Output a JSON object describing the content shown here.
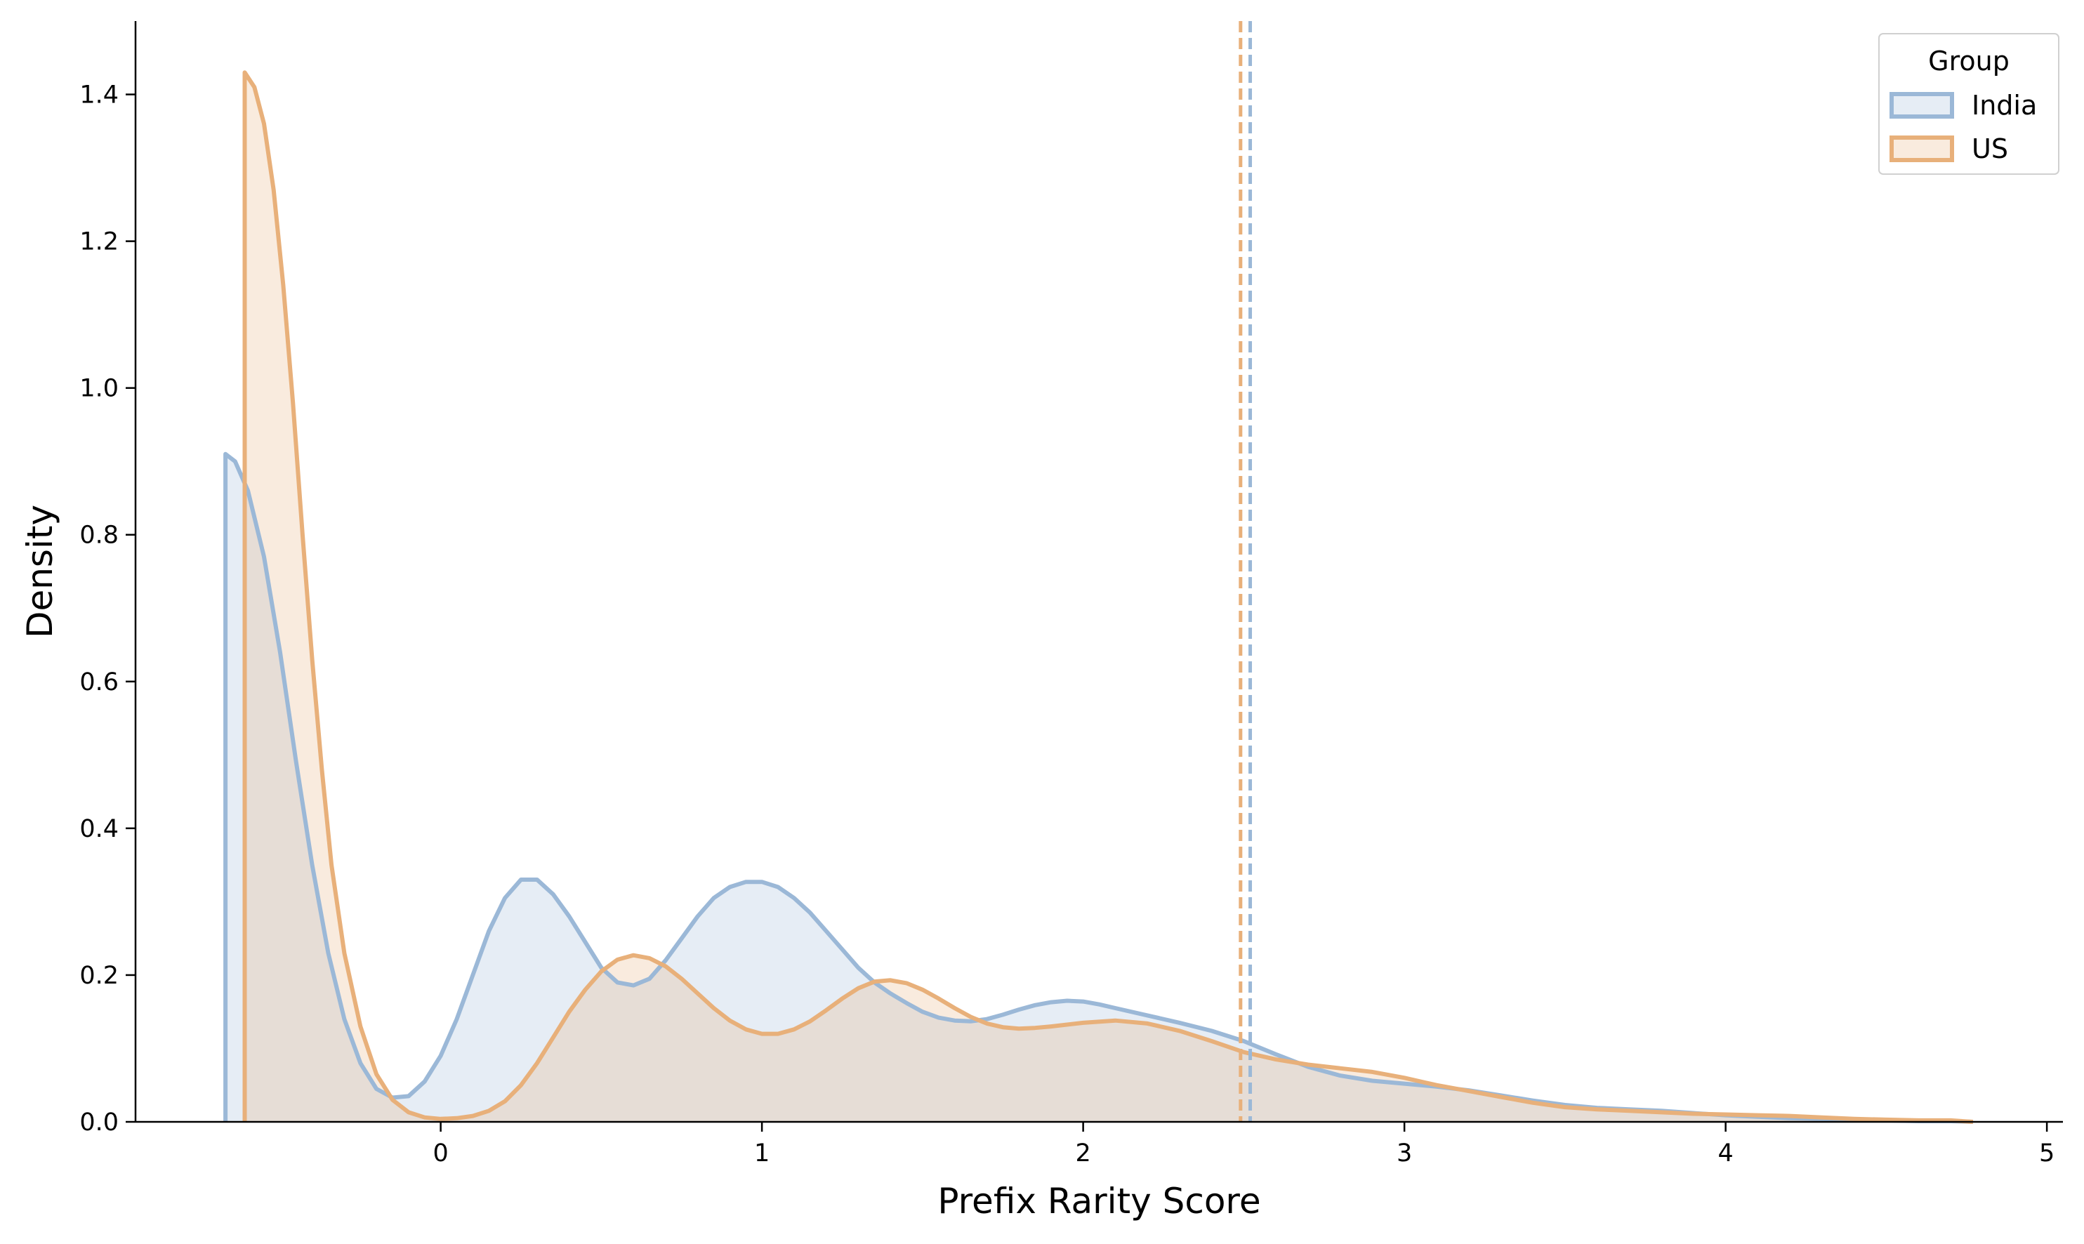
{
  "chart_data": {
    "type": "area",
    "subtype": "kde-density",
    "title": "",
    "xlabel": "Prefix Rarity Score",
    "ylabel": "Density",
    "xlim": [
      -0.95,
      5.05
    ],
    "ylim": [
      0.0,
      1.5
    ],
    "xticks": [
      0,
      1,
      2,
      3,
      4,
      5
    ],
    "xtick_labels": [
      "0",
      "1",
      "2",
      "3",
      "4",
      "5"
    ],
    "yticks": [
      0.0,
      0.2,
      0.4,
      0.6,
      0.8,
      1.0,
      1.2,
      1.4
    ],
    "ytick_labels": [
      "0.0",
      "0.2",
      "0.4",
      "0.6",
      "0.8",
      "1.0",
      "1.2",
      "1.4"
    ],
    "grid": false,
    "legend": {
      "title": "Group",
      "position": "top-right"
    },
    "series": [
      {
        "name": "India",
        "color": "#9bb8d7",
        "fill": "#e5edf6",
        "mean_line_x": 2.52,
        "points": [
          [
            -0.67,
            0.0
          ],
          [
            -0.67,
            0.91
          ],
          [
            -0.64,
            0.9
          ],
          [
            -0.6,
            0.86
          ],
          [
            -0.55,
            0.77
          ],
          [
            -0.5,
            0.64
          ],
          [
            -0.45,
            0.49
          ],
          [
            -0.4,
            0.35
          ],
          [
            -0.35,
            0.23
          ],
          [
            -0.3,
            0.14
          ],
          [
            -0.25,
            0.08
          ],
          [
            -0.2,
            0.045
          ],
          [
            -0.15,
            0.033
          ],
          [
            -0.1,
            0.035
          ],
          [
            -0.05,
            0.055
          ],
          [
            0.0,
            0.09
          ],
          [
            0.05,
            0.14
          ],
          [
            0.1,
            0.2
          ],
          [
            0.15,
            0.26
          ],
          [
            0.2,
            0.305
          ],
          [
            0.25,
            0.33
          ],
          [
            0.3,
            0.33
          ],
          [
            0.35,
            0.31
          ],
          [
            0.4,
            0.28
          ],
          [
            0.45,
            0.245
          ],
          [
            0.5,
            0.21
          ],
          [
            0.55,
            0.19
          ],
          [
            0.6,
            0.186
          ],
          [
            0.65,
            0.195
          ],
          [
            0.7,
            0.22
          ],
          [
            0.75,
            0.25
          ],
          [
            0.8,
            0.28
          ],
          [
            0.85,
            0.305
          ],
          [
            0.9,
            0.32
          ],
          [
            0.95,
            0.327
          ],
          [
            1.0,
            0.327
          ],
          [
            1.05,
            0.32
          ],
          [
            1.1,
            0.305
          ],
          [
            1.15,
            0.285
          ],
          [
            1.2,
            0.26
          ],
          [
            1.25,
            0.235
          ],
          [
            1.3,
            0.21
          ],
          [
            1.35,
            0.19
          ],
          [
            1.4,
            0.175
          ],
          [
            1.45,
            0.162
          ],
          [
            1.5,
            0.15
          ],
          [
            1.55,
            0.142
          ],
          [
            1.6,
            0.138
          ],
          [
            1.65,
            0.137
          ],
          [
            1.7,
            0.14
          ],
          [
            1.75,
            0.146
          ],
          [
            1.8,
            0.153
          ],
          [
            1.85,
            0.159
          ],
          [
            1.9,
            0.163
          ],
          [
            1.95,
            0.165
          ],
          [
            2.0,
            0.164
          ],
          [
            2.05,
            0.16
          ],
          [
            2.1,
            0.155
          ],
          [
            2.2,
            0.145
          ],
          [
            2.3,
            0.135
          ],
          [
            2.4,
            0.124
          ],
          [
            2.5,
            0.11
          ],
          [
            2.6,
            0.092
          ],
          [
            2.7,
            0.075
          ],
          [
            2.8,
            0.063
          ],
          [
            2.9,
            0.056
          ],
          [
            3.0,
            0.052
          ],
          [
            3.1,
            0.048
          ],
          [
            3.2,
            0.043
          ],
          [
            3.3,
            0.036
          ],
          [
            3.4,
            0.029
          ],
          [
            3.5,
            0.023
          ],
          [
            3.6,
            0.019
          ],
          [
            3.7,
            0.017
          ],
          [
            3.8,
            0.015
          ],
          [
            3.9,
            0.012
          ],
          [
            4.0,
            0.009
          ],
          [
            4.1,
            0.007
          ],
          [
            4.2,
            0.005
          ],
          [
            4.3,
            0.004
          ],
          [
            4.4,
            0.003
          ],
          [
            4.5,
            0.002
          ],
          [
            4.6,
            0.001
          ],
          [
            4.7,
            0.001
          ],
          [
            4.77,
            0.0
          ]
        ]
      },
      {
        "name": "US",
        "color": "#e8b07a",
        "fill": "#fae7d8",
        "mean_line_x": 2.49,
        "points": [
          [
            -0.61,
            0.0
          ],
          [
            -0.61,
            1.43
          ],
          [
            -0.58,
            1.41
          ],
          [
            -0.55,
            1.36
          ],
          [
            -0.52,
            1.27
          ],
          [
            -0.49,
            1.14
          ],
          [
            -0.46,
            0.98
          ],
          [
            -0.43,
            0.8
          ],
          [
            -0.4,
            0.63
          ],
          [
            -0.37,
            0.48
          ],
          [
            -0.34,
            0.35
          ],
          [
            -0.3,
            0.23
          ],
          [
            -0.25,
            0.13
          ],
          [
            -0.2,
            0.065
          ],
          [
            -0.15,
            0.03
          ],
          [
            -0.1,
            0.013
          ],
          [
            -0.05,
            0.006
          ],
          [
            0.0,
            0.004
          ],
          [
            0.05,
            0.005
          ],
          [
            0.1,
            0.008
          ],
          [
            0.15,
            0.015
          ],
          [
            0.2,
            0.028
          ],
          [
            0.25,
            0.05
          ],
          [
            0.3,
            0.08
          ],
          [
            0.35,
            0.115
          ],
          [
            0.4,
            0.15
          ],
          [
            0.45,
            0.18
          ],
          [
            0.5,
            0.205
          ],
          [
            0.55,
            0.221
          ],
          [
            0.6,
            0.227
          ],
          [
            0.65,
            0.223
          ],
          [
            0.7,
            0.212
          ],
          [
            0.75,
            0.195
          ],
          [
            0.8,
            0.175
          ],
          [
            0.85,
            0.155
          ],
          [
            0.9,
            0.138
          ],
          [
            0.95,
            0.126
          ],
          [
            1.0,
            0.12
          ],
          [
            1.05,
            0.12
          ],
          [
            1.1,
            0.126
          ],
          [
            1.15,
            0.137
          ],
          [
            1.2,
            0.152
          ],
          [
            1.25,
            0.168
          ],
          [
            1.3,
            0.182
          ],
          [
            1.35,
            0.191
          ],
          [
            1.4,
            0.193
          ],
          [
            1.45,
            0.189
          ],
          [
            1.5,
            0.18
          ],
          [
            1.55,
            0.168
          ],
          [
            1.6,
            0.155
          ],
          [
            1.65,
            0.143
          ],
          [
            1.7,
            0.134
          ],
          [
            1.75,
            0.129
          ],
          [
            1.8,
            0.127
          ],
          [
            1.85,
            0.128
          ],
          [
            1.9,
            0.13
          ],
          [
            2.0,
            0.135
          ],
          [
            2.1,
            0.138
          ],
          [
            2.2,
            0.134
          ],
          [
            2.3,
            0.124
          ],
          [
            2.4,
            0.11
          ],
          [
            2.5,
            0.095
          ],
          [
            2.6,
            0.085
          ],
          [
            2.7,
            0.078
          ],
          [
            2.8,
            0.073
          ],
          [
            2.9,
            0.068
          ],
          [
            3.0,
            0.06
          ],
          [
            3.1,
            0.05
          ],
          [
            3.2,
            0.042
          ],
          [
            3.3,
            0.034
          ],
          [
            3.4,
            0.026
          ],
          [
            3.5,
            0.02
          ],
          [
            3.6,
            0.017
          ],
          [
            3.7,
            0.015
          ],
          [
            3.8,
            0.013
          ],
          [
            3.9,
            0.011
          ],
          [
            4.0,
            0.01
          ],
          [
            4.1,
            0.009
          ],
          [
            4.2,
            0.008
          ],
          [
            4.3,
            0.006
          ],
          [
            4.4,
            0.004
          ],
          [
            4.5,
            0.003
          ],
          [
            4.6,
            0.002
          ],
          [
            4.7,
            0.002
          ],
          [
            4.77,
            0.0
          ]
        ]
      }
    ]
  }
}
